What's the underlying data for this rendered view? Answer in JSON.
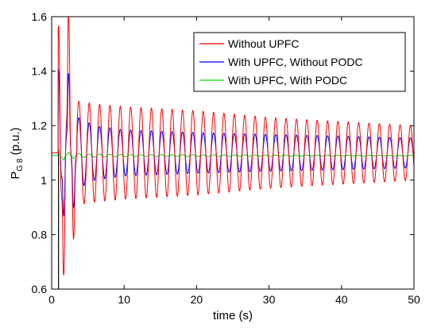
{
  "chart_data": {
    "type": "line",
    "xlabel": "time (s)",
    "ylabel": {
      "base": "P",
      "sub": "G 8",
      "unit": " (p.u.)"
    },
    "xlim": [
      0,
      50
    ],
    "ylim": [
      0.6,
      1.6
    ],
    "xticks": [
      0,
      10,
      20,
      30,
      40,
      50
    ],
    "yticks": [
      0.6,
      0.8,
      1,
      1.2,
      1.4,
      1.6
    ],
    "ytick_labels": [
      "0.6",
      "0.8",
      "1",
      "1.2",
      "1.4",
      "1.6"
    ],
    "grid": false,
    "legend_position": "top-right",
    "oscillation_period_s": 1.43,
    "series": [
      {
        "name": "Without UPFC",
        "color": "#ff0000",
        "steady_value": 1.1,
        "envelope": [
          [
            0.9,
            0.45
          ],
          [
            1.5,
            0.4
          ],
          [
            2.3,
            0.48
          ],
          [
            2.8,
            0.32
          ],
          [
            3.7,
            0.19
          ],
          [
            6,
            0.18
          ],
          [
            10,
            0.17
          ],
          [
            20,
            0.155
          ],
          [
            30,
            0.13
          ],
          [
            40,
            0.115
          ],
          [
            50,
            0.1
          ]
        ]
      },
      {
        "name": "With UPFC, Without PODC",
        "color": "#0000ff",
        "steady_value": 1.1,
        "envelope": [
          [
            0.9,
            0.3
          ],
          [
            1.5,
            0.2
          ],
          [
            2.3,
            0.27
          ],
          [
            2.8,
            0.2
          ],
          [
            3.7,
            0.13
          ],
          [
            6,
            0.1
          ],
          [
            10,
            0.085
          ],
          [
            20,
            0.075
          ],
          [
            30,
            0.068
          ],
          [
            40,
            0.062
          ],
          [
            50,
            0.055
          ]
        ]
      },
      {
        "name": "With UPFC, With PODC",
        "color": "#00dd00",
        "steady_value": 1.09,
        "envelope": [
          [
            0.9,
            0.02
          ],
          [
            2,
            0.012
          ],
          [
            5,
            0.006
          ],
          [
            10,
            0.004
          ],
          [
            30,
            0.002
          ],
          [
            50,
            0.001
          ]
        ]
      }
    ]
  }
}
